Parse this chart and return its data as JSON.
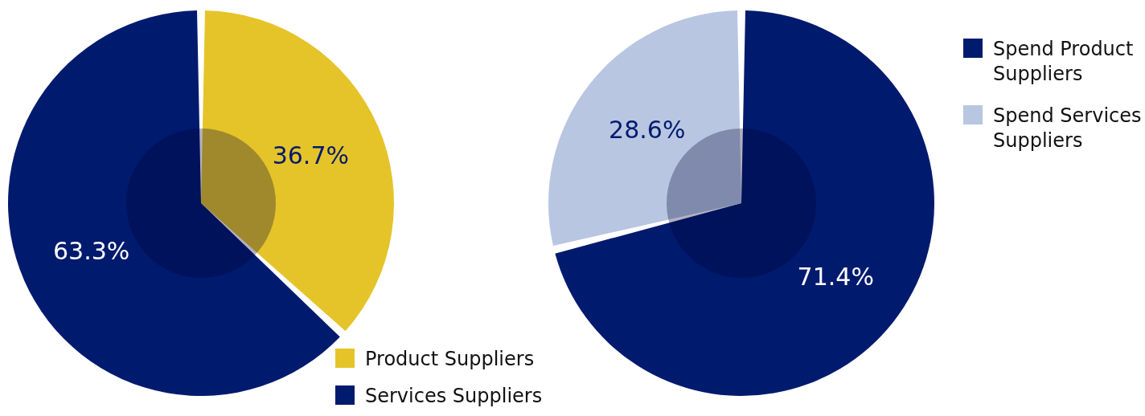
{
  "chart_data": [
    {
      "type": "donut",
      "categories": [
        "Product Suppliers",
        "Services Suppliers"
      ],
      "values": [
        36.7,
        63.3
      ],
      "colors": [
        "#e5c42a",
        "#001a6e"
      ],
      "value_labels": [
        "36.7%",
        "63.3%"
      ],
      "legend": "bottom right"
    },
    {
      "type": "donut",
      "categories": [
        "Spend Product Suppliers",
        "Spend Services Suppliers"
      ],
      "values": [
        71.4,
        28.6
      ],
      "colors": [
        "#001a6e",
        "#b8c6e2"
      ],
      "value_labels": [
        "71.4%",
        "28.6%"
      ],
      "legend": "top right"
    }
  ]
}
